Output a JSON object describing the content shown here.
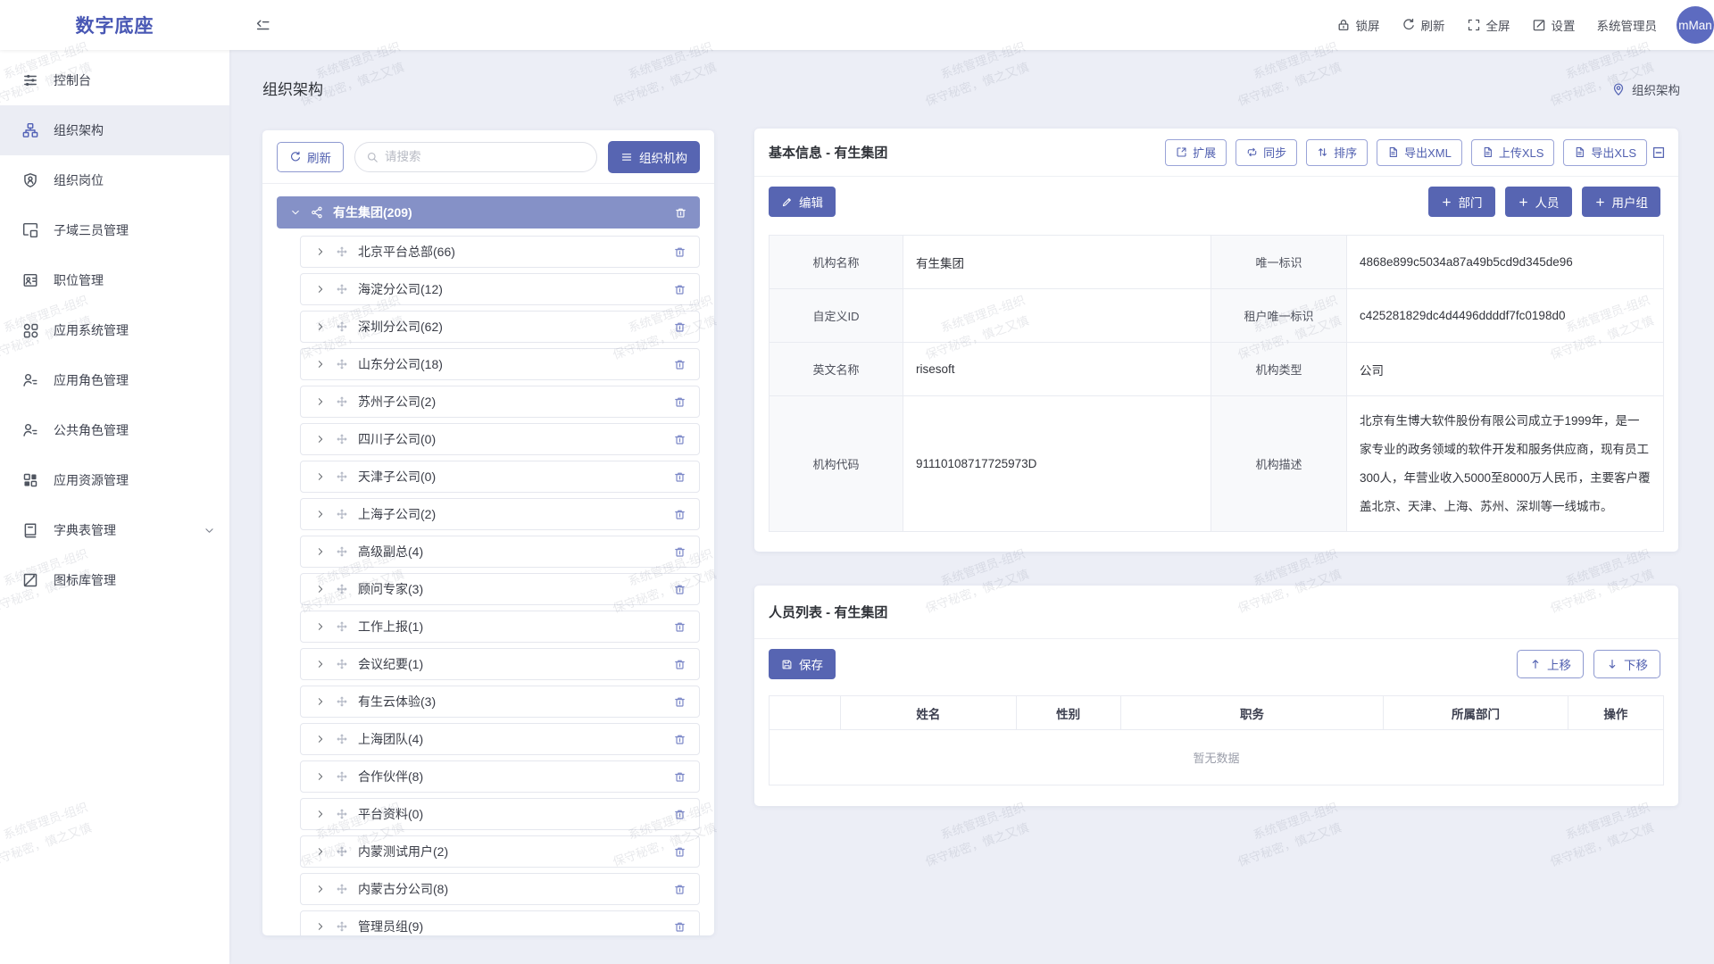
{
  "brand": {
    "logo_text": "数字底座"
  },
  "topbar": {
    "actions": [
      {
        "icon": "lock-icon",
        "label": "锁屏"
      },
      {
        "icon": "refresh-icon",
        "label": "刷新"
      },
      {
        "icon": "fullscreen-icon",
        "label": "全屏"
      },
      {
        "icon": "edit-square-icon",
        "label": "设置"
      },
      {
        "icon": "",
        "label": "系统管理员"
      }
    ],
    "avatar_text": "mMan"
  },
  "sidebar": {
    "items": [
      {
        "label": "控制台",
        "icon": "console-icon",
        "active": false,
        "submenu": false
      },
      {
        "label": "组织架构",
        "icon": "org-structure-icon",
        "active": true,
        "submenu": false
      },
      {
        "label": "组织岗位",
        "icon": "org-post-icon",
        "active": false,
        "submenu": false
      },
      {
        "label": "子域三员管理",
        "icon": "subdomain-icon",
        "active": false,
        "submenu": false
      },
      {
        "label": "职位管理",
        "icon": "position-icon",
        "active": false,
        "submenu": false
      },
      {
        "label": "应用系统管理",
        "icon": "app-system-icon",
        "active": false,
        "submenu": false
      },
      {
        "label": "应用角色管理",
        "icon": "app-role-icon",
        "active": false,
        "submenu": false
      },
      {
        "label": "公共角色管理",
        "icon": "public-role-icon",
        "active": false,
        "submenu": false
      },
      {
        "label": "应用资源管理",
        "icon": "app-resource-icon",
        "active": false,
        "submenu": false
      },
      {
        "label": "字典表管理",
        "icon": "dictionary-icon",
        "active": false,
        "submenu": true
      },
      {
        "label": "图标库管理",
        "icon": "icon-library-icon",
        "active": false,
        "submenu": false
      }
    ]
  },
  "page": {
    "title": "组织架构",
    "breadcrumb": "组织架构"
  },
  "tree_panel": {
    "refresh_label": "刷新",
    "search_placeholder": "请搜索",
    "org_button_label": "组织机构",
    "root_label": "有生集团(209)",
    "children": [
      "北京平台总部(66)",
      "海淀分公司(12)",
      "深圳分公司(62)",
      "山东分公司(18)",
      "苏州子公司(2)",
      "四川子公司(0)",
      "天津子公司(0)",
      "上海子公司(2)",
      "高级副总(4)",
      "顾问专家(3)",
      "工作上报(1)",
      "会议纪要(1)",
      "有生云体验(3)",
      "上海团队(4)",
      "合作伙伴(8)",
      "平台资料(0)",
      "内蒙测试用户(2)",
      "内蒙古分公司(8)",
      "管理员组(9)"
    ]
  },
  "basic_info": {
    "title": "基本信息 - 有生集团",
    "toolbar": [
      {
        "label": "扩展",
        "icon": "expand-icon"
      },
      {
        "label": "同步",
        "icon": "sync-icon"
      },
      {
        "label": "排序",
        "icon": "sort-icon"
      },
      {
        "label": "导出XML",
        "icon": "file-icon"
      },
      {
        "label": "上传XLS",
        "icon": "file-icon"
      },
      {
        "label": "导出XLS",
        "icon": "file-icon"
      }
    ],
    "edit_label": "编辑",
    "add_buttons": [
      {
        "label": "部门"
      },
      {
        "label": "人员"
      },
      {
        "label": "用户组"
      }
    ],
    "rows": [
      {
        "cells": [
          {
            "label": "机构名称",
            "value": "有生集团"
          },
          {
            "label": "唯一标识",
            "value": "4868e899c5034a87a49b5cd9d345de96"
          }
        ]
      },
      {
        "cells": [
          {
            "label": "自定义ID",
            "value": ""
          },
          {
            "label": "租户唯一标识",
            "value": "c425281829dc4d4496ddddf7fc0198d0"
          }
        ]
      },
      {
        "cells": [
          {
            "label": "英文名称",
            "value": "risesoft"
          },
          {
            "label": "机构类型",
            "value": "公司"
          }
        ]
      },
      {
        "cells": [
          {
            "label": "机构代码",
            "value": "91110108717725973D"
          },
          {
            "label": "机构描述",
            "value": "北京有生博大软件股份有限公司成立于1999年，是一家专业的政务领域的软件开发和服务供应商，现有员工300人，年营业收入5000至8000万人民币，主要客户覆盖北京、天津、上海、苏州、深圳等一线城市。"
          }
        ]
      }
    ]
  },
  "person_list": {
    "title": "人员列表 - 有生集团",
    "save_label": "保存",
    "move_up_label": "上移",
    "move_down_label": "下移",
    "columns": [
      "",
      "姓名",
      "性别",
      "职务",
      "所属部门",
      "操作"
    ],
    "empty_text": "暂无数据"
  },
  "watermark": {
    "line1": "系统管理员-组织",
    "line2": "保守秘密，慎之又慎"
  },
  "colors": {
    "primary": "#5765b2",
    "selected_row": "#8591c7",
    "avatar_bg": "#5d6bc0"
  }
}
